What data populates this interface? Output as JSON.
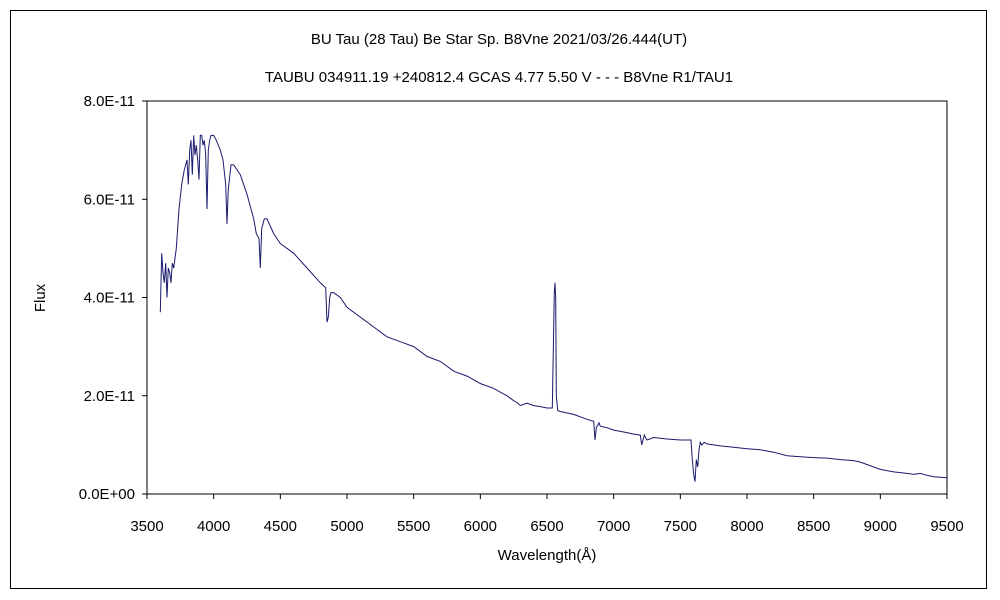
{
  "chart_data": {
    "type": "line",
    "title": "BU Tau (28 Tau)    Be Star    Sp. B8Vne    2021/03/26.444(UT)",
    "subtitle": "TAUBU 034911.19 +240812.4 GCAS 4.77 5.50 V - - - B8Vne R1/TAU1",
    "xlabel": "Wavelength(Å)",
    "ylabel": "Flux",
    "xlim": [
      3500,
      9500
    ],
    "ylim": [
      0,
      8e-11
    ],
    "x_ticks": [
      3500,
      4000,
      4500,
      5000,
      5500,
      6000,
      6500,
      7000,
      7500,
      8000,
      8500,
      9000,
      9500
    ],
    "x_tick_labels": [
      "3500",
      "4000",
      "4500",
      "5000",
      "5500",
      "6000",
      "6500",
      "7000",
      "7500",
      "8000",
      "8500",
      "9000",
      "9500"
    ],
    "y_ticks": [
      0,
      2e-11,
      4e-11,
      6e-11,
      8e-11
    ],
    "y_tick_labels": [
      "0.0E+00",
      "2.0E-11",
      "4.0E-11",
      "6.0E-11",
      "8.0E-11"
    ],
    "grid": false,
    "legend": "none",
    "line_color": "#1a1a6e",
    "series": [
      {
        "x": [
          3600,
          3610,
          3620,
          3630,
          3640,
          3650,
          3660,
          3670,
          3680,
          3690,
          3700,
          3720,
          3740,
          3760,
          3780,
          3800,
          3810,
          3820,
          3830,
          3840,
          3850,
          3860,
          3870,
          3880,
          3890,
          3900,
          3910,
          3920,
          3930,
          3940,
          3950,
          3960,
          3970,
          3980,
          4000,
          4020,
          4050,
          4070,
          4090,
          4100,
          4110,
          4130,
          4150,
          4200,
          4250,
          4300,
          4320,
          4340,
          4350,
          4360,
          4380,
          4400,
          4450,
          4500,
          4600,
          4700,
          4800,
          4840,
          4850,
          4860,
          4870,
          4880,
          4900,
          4950,
          5000,
          5100,
          5200,
          5300,
          5400,
          5500,
          5600,
          5700,
          5800,
          5900,
          6000,
          6100,
          6200,
          6250,
          6280,
          6300,
          6350,
          6400,
          6450,
          6500,
          6540,
          6555,
          6560,
          6565,
          6570,
          6580,
          6600,
          6700,
          6800,
          6850,
          6860,
          6870,
          6880,
          6890,
          6900,
          6950,
          7000,
          7100,
          7150,
          7200,
          7210,
          7230,
          7250,
          7300,
          7400,
          7500,
          7550,
          7580,
          7590,
          7600,
          7610,
          7620,
          7630,
          7640,
          7650,
          7660,
          7680,
          7700,
          7750,
          7800,
          7900,
          8000,
          8100,
          8200,
          8300,
          8400,
          8500,
          8600,
          8700,
          8800,
          8850,
          8900,
          8950,
          9000,
          9100,
          9200,
          9250,
          9300,
          9350,
          9400,
          9500
        ],
        "y": [
          3.7e-11,
          4.9e-11,
          4.5e-11,
          4.3e-11,
          4.7e-11,
          4e-11,
          4.6e-11,
          4.5e-11,
          4.3e-11,
          4.7e-11,
          4.6e-11,
          5e-11,
          5.8e-11,
          6.3e-11,
          6.6e-11,
          6.8e-11,
          6.3e-11,
          7e-11,
          7.2e-11,
          6.5e-11,
          7.3e-11,
          6.9e-11,
          7.1e-11,
          6.8e-11,
          6.4e-11,
          7.3e-11,
          7.3e-11,
          7.1e-11,
          7.2e-11,
          6.9e-11,
          5.8e-11,
          7e-11,
          7.2e-11,
          7.3e-11,
          7.3e-11,
          7.2e-11,
          7e-11,
          6.8e-11,
          6.3e-11,
          5.5e-11,
          6.2e-11,
          6.7e-11,
          6.7e-11,
          6.5e-11,
          6.1e-11,
          5.6e-11,
          5.3e-11,
          5.2e-11,
          4.6e-11,
          5.4e-11,
          5.6e-11,
          5.6e-11,
          5.3e-11,
          5.1e-11,
          4.9e-11,
          4.6e-11,
          4.3e-11,
          4.2e-11,
          3.5e-11,
          3.6e-11,
          4e-11,
          4.1e-11,
          4.1e-11,
          4e-11,
          3.8e-11,
          3.6e-11,
          3.4e-11,
          3.2e-11,
          3.1e-11,
          3e-11,
          2.8e-11,
          2.7e-11,
          2.5e-11,
          2.4e-11,
          2.25e-11,
          2.15e-11,
          2e-11,
          1.9e-11,
          1.85e-11,
          1.8e-11,
          1.85e-11,
          1.8e-11,
          1.78e-11,
          1.75e-11,
          1.75e-11,
          4.1e-11,
          4.3e-11,
          4e-11,
          2e-11,
          1.7e-11,
          1.68e-11,
          1.62e-11,
          1.52e-11,
          1.48e-11,
          1.1e-11,
          1.35e-11,
          1.4e-11,
          1.45e-11,
          1.38e-11,
          1.35e-11,
          1.3e-11,
          1.25e-11,
          1.22e-11,
          1.2e-11,
          1e-11,
          1.2e-11,
          1.1e-11,
          1.15e-11,
          1.12e-11,
          1.1e-11,
          1.1e-11,
          1.1e-11,
          7e-12,
          4e-12,
          2.5e-12,
          7e-12,
          5.5e-12,
          9e-12,
          1.05e-11,
          1e-11,
          1.05e-11,
          1.02e-11,
          1e-11,
          9.8e-12,
          9.5e-12,
          9.2e-12,
          9e-12,
          8.5e-12,
          7.8e-12,
          7.6e-12,
          7.4e-12,
          7.3e-12,
          7e-12,
          6.8e-12,
          6.5e-12,
          6e-12,
          5.5e-12,
          5e-12,
          4.5e-12,
          4.2e-12,
          4e-12,
          4.2e-12,
          3.8e-12,
          3.5e-12,
          3.3e-12
        ]
      }
    ]
  }
}
